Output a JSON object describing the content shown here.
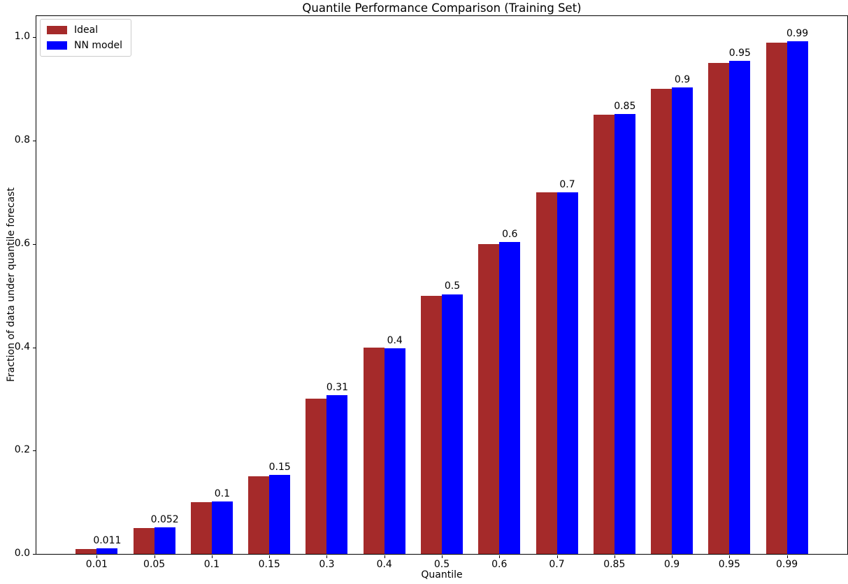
{
  "chart_data": {
    "type": "bar",
    "title": "Quantile Performance Comparison (Training Set)",
    "xlabel": "Quantile",
    "ylabel": "Fraction of data under quantile forecast",
    "categories": [
      "0.01",
      "0.05",
      "0.1",
      "0.15",
      "0.3",
      "0.4",
      "0.5",
      "0.6",
      "0.7",
      "0.85",
      "0.9",
      "0.95",
      "0.99"
    ],
    "series": [
      {
        "name": "Ideal",
        "color": "#a52a2a",
        "values": [
          0.01,
          0.05,
          0.1,
          0.15,
          0.3,
          0.4,
          0.5,
          0.6,
          0.7,
          0.85,
          0.9,
          0.95,
          0.99
        ]
      },
      {
        "name": "NN model",
        "color": "#0000ff",
        "values": [
          0.011,
          0.052,
          0.102,
          0.153,
          0.307,
          0.398,
          0.503,
          0.604,
          0.7,
          0.851,
          0.903,
          0.955,
          0.993
        ]
      }
    ],
    "bar_labels": [
      "0.011",
      "0.052",
      "0.1",
      "0.15",
      "0.31",
      "0.4",
      "0.5",
      "0.6",
      "0.7",
      "0.85",
      "0.9",
      "0.95",
      "0.99"
    ],
    "bar_labels_on_series": "NN model",
    "yticks": {
      "values": [
        0.0,
        0.2,
        0.4,
        0.6,
        0.8,
        1.0
      ],
      "labels": [
        "0.0",
        "0.2",
        "0.4",
        "0.6",
        "0.8",
        "1.0"
      ]
    },
    "ylim": [
      0,
      1.0412
    ],
    "grid": false,
    "legend_position": "upper left",
    "colors": {
      "spine": "#000000",
      "text": "#000000",
      "legend_border": "#cccccc",
      "background": "#ffffff"
    }
  }
}
